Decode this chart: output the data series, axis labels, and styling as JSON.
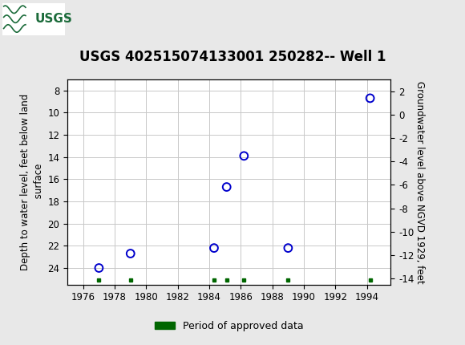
{
  "title": "USGS 402515074133001 250282-- Well 1",
  "ylabel_left": "Depth to water level, feet below land\n surface",
  "ylabel_right": "Groundwater level above NGVD 1929, feet",
  "xlim": [
    1975,
    1995.5
  ],
  "ylim_left": [
    25.5,
    7.0
  ],
  "ylim_right": [
    -14.5,
    3.0
  ],
  "xticks": [
    1976,
    1978,
    1980,
    1982,
    1984,
    1986,
    1988,
    1990,
    1992,
    1994
  ],
  "yticks_left": [
    8,
    10,
    12,
    14,
    16,
    18,
    20,
    22,
    24
  ],
  "yticks_right": [
    2,
    0,
    -2,
    -4,
    -6,
    -8,
    -10,
    -12,
    -14
  ],
  "scatter_x": [
    1977.0,
    1979.0,
    1984.3,
    1985.1,
    1986.2,
    1989.0,
    1994.2
  ],
  "scatter_y": [
    24.0,
    22.7,
    22.2,
    16.7,
    13.9,
    22.2,
    8.7
  ],
  "approved_x": [
    1977.0,
    1979.0,
    1984.3,
    1985.1,
    1986.2,
    1989.0,
    1994.2
  ],
  "background_color": "#e8e8e8",
  "plot_bg_color": "#ffffff",
  "header_color": "#1b6b3a",
  "scatter_color": "#0000cc",
  "approved_color": "#006600",
  "grid_color": "#c8c8c8",
  "title_fontsize": 12,
  "axis_label_fontsize": 8.5,
  "tick_fontsize": 8.5,
  "legend_fontsize": 9
}
